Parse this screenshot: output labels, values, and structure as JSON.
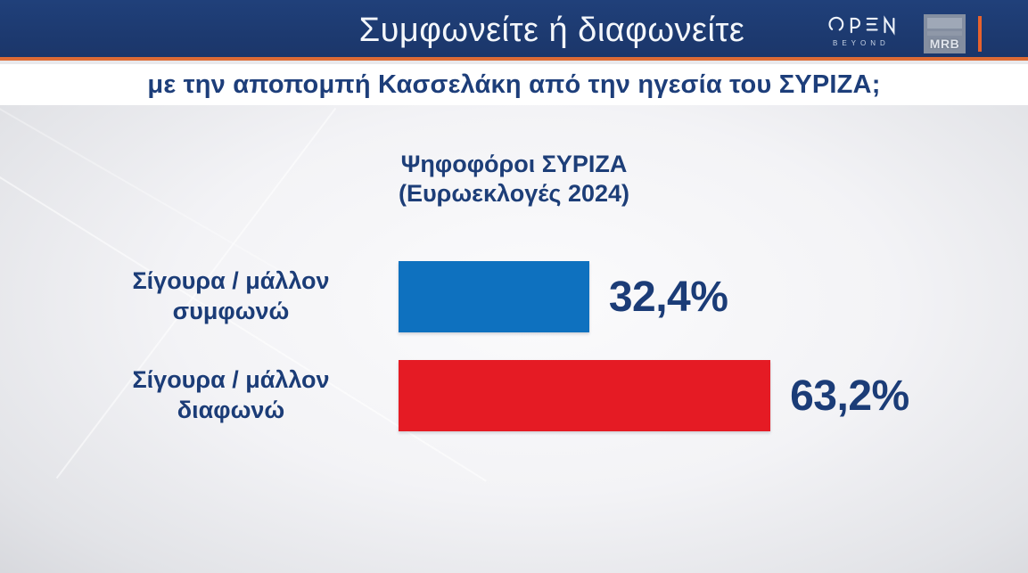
{
  "header": {
    "title": "Συμφωνείτε ή διαφωνείτε",
    "channel_logo": {
      "name": "OPEN",
      "tagline": "BEYOND"
    },
    "agency_logo": "MRB"
  },
  "subtitle": "με την αποπομπή Κασσελάκη από την ηγεσία του ΣΥΡΙΖΑ;",
  "chart_data": {
    "type": "bar",
    "orientation": "horizontal",
    "title": "Ψηφοφόροι ΣΥΡΙΖΑ",
    "subtitle": "(Ευρωεκλογές 2024)",
    "categories": [
      "Σίγουρα / μάλλον συμφωνώ",
      "Σίγουρα / μάλλον διαφωνώ"
    ],
    "values": [
      32.4,
      63.2
    ],
    "value_labels": [
      "32,4%",
      "63,2%"
    ],
    "bar_colors": [
      "#0e71bf",
      "#e51b24"
    ],
    "xlim": [
      0,
      100
    ],
    "grid": false,
    "legend": false,
    "value_label_color": "#1b3c77",
    "category_label_color": "#1b3c77"
  },
  "colors": {
    "header_bg": "#1d3a70",
    "accent_orange": "#dd6b35",
    "navy_text": "#1d3e7a",
    "bar_blue": "#0e71bf",
    "bar_red": "#e51b24"
  }
}
